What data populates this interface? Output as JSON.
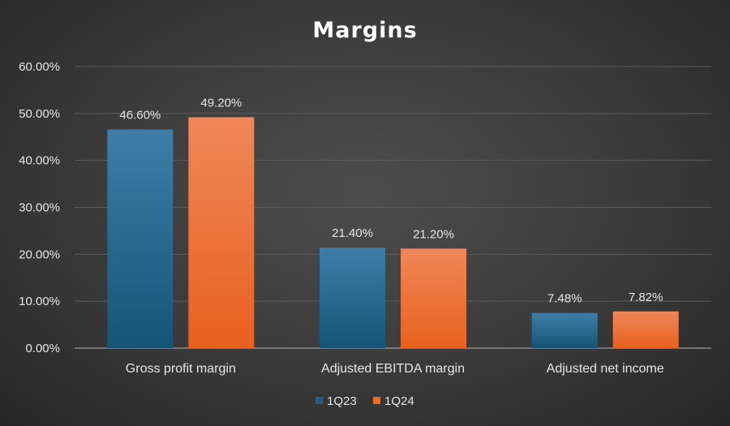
{
  "chart_data": {
    "type": "bar",
    "title": "Margins",
    "categories": [
      "Gross profit margin",
      "Adjusted EBITDA margin",
      "Adjusted net income"
    ],
    "series": [
      {
        "name": "1Q23",
        "values": [
          46.6,
          21.4,
          7.48
        ],
        "labels": [
          "46.60%",
          "21.40%",
          "7.48%"
        ],
        "color": "#1f5f8b"
      },
      {
        "name": "1Q24",
        "values": [
          49.2,
          21.2,
          7.82
        ],
        "labels": [
          "49.20%",
          "21.20%",
          "7.82%"
        ],
        "color": "#ec6a2a"
      }
    ],
    "yticks": [
      "0.00%",
      "10.00%",
      "20.00%",
      "30.00%",
      "40.00%",
      "50.00%",
      "60.00%"
    ],
    "ylim": [
      0,
      60
    ],
    "grid": true,
    "legend_position": "bottom",
    "xlabel": "",
    "ylabel": ""
  },
  "colors": {
    "background": "#3a3a3a",
    "series_1Q23": "#1f5f8b",
    "series_1Q24": "#ec6a2a",
    "gridline": "#5c5c5c",
    "text": "#e6e6e6"
  }
}
